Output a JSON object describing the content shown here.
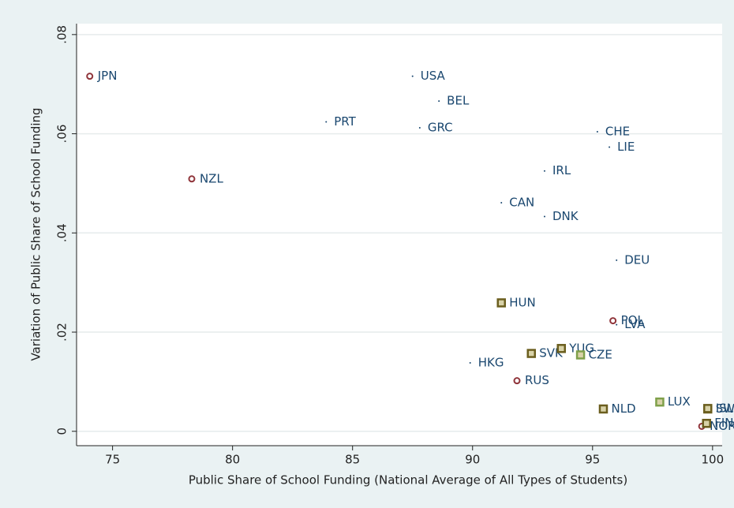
{
  "chart_data": {
    "type": "scatter",
    "xlabel": "Public Share of School Funding (National Average of All Types of Students)",
    "ylabel": "Variation of Public Share of School Funding",
    "xlim": [
      73.5,
      100.4
    ],
    "ylim": [
      -0.0029,
      0.0822
    ],
    "xticks": [
      75,
      80,
      85,
      90,
      95,
      100
    ],
    "yticks": [
      0,
      {
        "value": 0.02,
        "label": ".02"
      },
      {
        "value": 0.04,
        "label": ".04"
      },
      {
        "value": 0.06,
        "label": ".06"
      },
      {
        "value": 0.08,
        "label": ".08"
      }
    ],
    "grid": true,
    "series": [
      {
        "marker": "dot",
        "color": "#1a476f",
        "labels": [
          "USA",
          "BEL",
          "PRT",
          "GRC",
          "CHE",
          "LIE",
          "IRL",
          "CAN",
          "DNK",
          "DEU",
          "HKG",
          "LVA"
        ],
        "x": [
          87.5,
          88.6,
          83.9,
          87.8,
          95.2,
          95.7,
          93.0,
          91.2,
          93.0,
          96.0,
          89.9,
          96.0
        ],
        "values": [
          0.0716,
          0.0666,
          0.0624,
          0.0612,
          0.0604,
          0.0573,
          0.0525,
          0.0461,
          0.0433,
          0.0345,
          0.0138,
          0.0215
        ]
      },
      {
        "marker": "circle",
        "color": "#90353b",
        "labels": [
          "JPN",
          "NZL",
          "POL",
          "RUS",
          "NOR"
        ],
        "x": [
          74.05,
          78.3,
          95.85,
          91.85,
          99.55
        ],
        "values": [
          0.0716,
          0.0509,
          0.0223,
          0.0102,
          0.001
        ]
      },
      {
        "marker": "square",
        "color": "#6b5e1e",
        "labels": [
          "HUN",
          "SVK",
          "YUG",
          "NLD",
          "SWE",
          "ISL",
          "FIN"
        ],
        "x": [
          91.2,
          92.45,
          93.7,
          95.45,
          99.8,
          99.8,
          99.75
        ],
        "values": [
          0.0259,
          0.0157,
          0.0167,
          0.0045,
          0.0045,
          0.0046,
          0.0016
        ]
      },
      {
        "marker": "square",
        "color": "#7fa04a",
        "labels": [
          "CZE",
          "LUX"
        ],
        "x": [
          94.5,
          97.8
        ],
        "values": [
          0.0154,
          0.0059
        ]
      }
    ]
  }
}
